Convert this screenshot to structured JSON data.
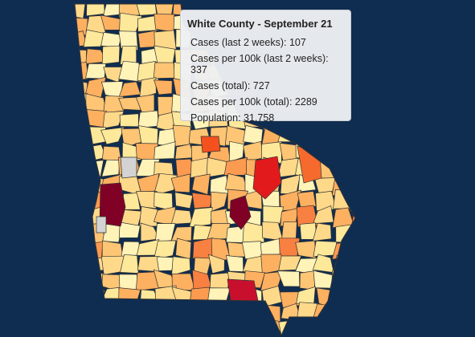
{
  "tooltip": {
    "title": "White County - September 21",
    "lines": [
      "Cases (last 2 weeks): 107",
      "Cases per 100k (last 2 weeks): 337",
      "Cases (total): 727",
      "Cases per 100k (total): 2289",
      "Population: 31,758"
    ]
  }
}
